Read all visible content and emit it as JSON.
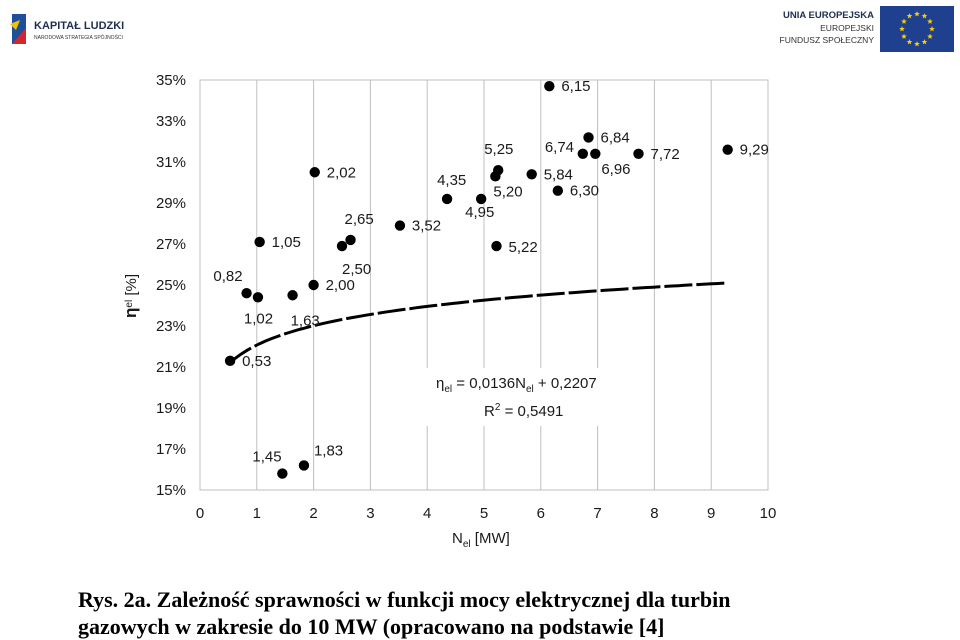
{
  "logos": {
    "left": {
      "line1": "KAPITAŁ LUDZKI",
      "line2": "NARODOWA STRATEGIA SPÓJNOŚCI"
    },
    "right": {
      "line1": "UNIA EUROPEJSKA",
      "line2": "EUROPEJSKI",
      "line3": "FUNDUSZ SPOŁECZNY"
    },
    "colors": {
      "eu_blue": "#1f3f8f",
      "eu_star": "#ffcc00",
      "kl_blue": "#1f4f9a",
      "kl_red": "#d3262c",
      "kl_yellow": "#f3c300"
    }
  },
  "caption": {
    "line1": "Rys. 2a. Zależność sprawności w funkcji mocy elektrycznej dla turbin",
    "line2": "gazowych w zakresie do 10 MW (opracowano na podstawie [4]"
  },
  "chart_data": {
    "type": "scatter",
    "xlim": [
      0,
      10
    ],
    "ylim": [
      15,
      35
    ],
    "xticks": [
      0,
      1,
      2,
      3,
      4,
      5,
      6,
      7,
      8,
      9,
      10
    ],
    "yticks": [
      15,
      17,
      19,
      21,
      23,
      25,
      27,
      29,
      31,
      33,
      35
    ],
    "ytick_suffix": "%",
    "grid": "vertical",
    "xlabel": {
      "main": "N",
      "sub": "el",
      "unit": " [MW]"
    },
    "ylabel": {
      "main": "η",
      "sub": "el",
      "unit": " [%]"
    },
    "points": [
      {
        "x": 0.53,
        "y": 21.3,
        "label": "0,53"
      },
      {
        "x": 0.82,
        "y": 24.6,
        "label": "0,82"
      },
      {
        "x": 1.02,
        "y": 24.4,
        "label": "1,02"
      },
      {
        "x": 1.05,
        "y": 27.1,
        "label": "1,05"
      },
      {
        "x": 1.45,
        "y": 15.8,
        "label": "1,45"
      },
      {
        "x": 1.63,
        "y": 24.5,
        "label": "1,63"
      },
      {
        "x": 1.83,
        "y": 16.2,
        "label": "1,83"
      },
      {
        "x": 2.0,
        "y": 25.0,
        "label": "2,00"
      },
      {
        "x": 2.02,
        "y": 30.5,
        "label": "2,02"
      },
      {
        "x": 2.5,
        "y": 26.9,
        "label": "2,50"
      },
      {
        "x": 2.65,
        "y": 27.2,
        "label": "2,65"
      },
      {
        "x": 3.52,
        "y": 27.9,
        "label": "3,52"
      },
      {
        "x": 4.35,
        "y": 29.2,
        "label": "4,35"
      },
      {
        "x": 4.95,
        "y": 29.2,
        "label": "4,95"
      },
      {
        "x": 5.2,
        "y": 30.3,
        "label": "5,20"
      },
      {
        "x": 5.22,
        "y": 26.9,
        "label": "5,22"
      },
      {
        "x": 5.25,
        "y": 30.6,
        "label": "5,25"
      },
      {
        "x": 5.84,
        "y": 30.4,
        "label": "5,84"
      },
      {
        "x": 6.15,
        "y": 34.7,
        "label": "6,15"
      },
      {
        "x": 6.3,
        "y": 29.6,
        "label": "6,30"
      },
      {
        "x": 6.74,
        "y": 31.4,
        "label": "6,74"
      },
      {
        "x": 6.84,
        "y": 32.2,
        "label": "6,84"
      },
      {
        "x": 6.96,
        "y": 31.4,
        "label": "6,96"
      },
      {
        "x": 7.72,
        "y": 31.4,
        "label": "7,72"
      },
      {
        "x": 9.29,
        "y": 31.6,
        "label": "9,29"
      }
    ],
    "trendline": {
      "type": "log",
      "a": 0.0136,
      "b": 0.2207,
      "x_range": [
        0.5,
        9.3
      ]
    },
    "equation": {
      "eta": "η",
      "eta_sub": "el",
      "eq": " = 0,0136N",
      "n_sub": "el",
      "tail": " + 0,2207"
    },
    "r2": {
      "prefix": "R",
      "sup": "2",
      "tail": " = 0,5491"
    }
  }
}
